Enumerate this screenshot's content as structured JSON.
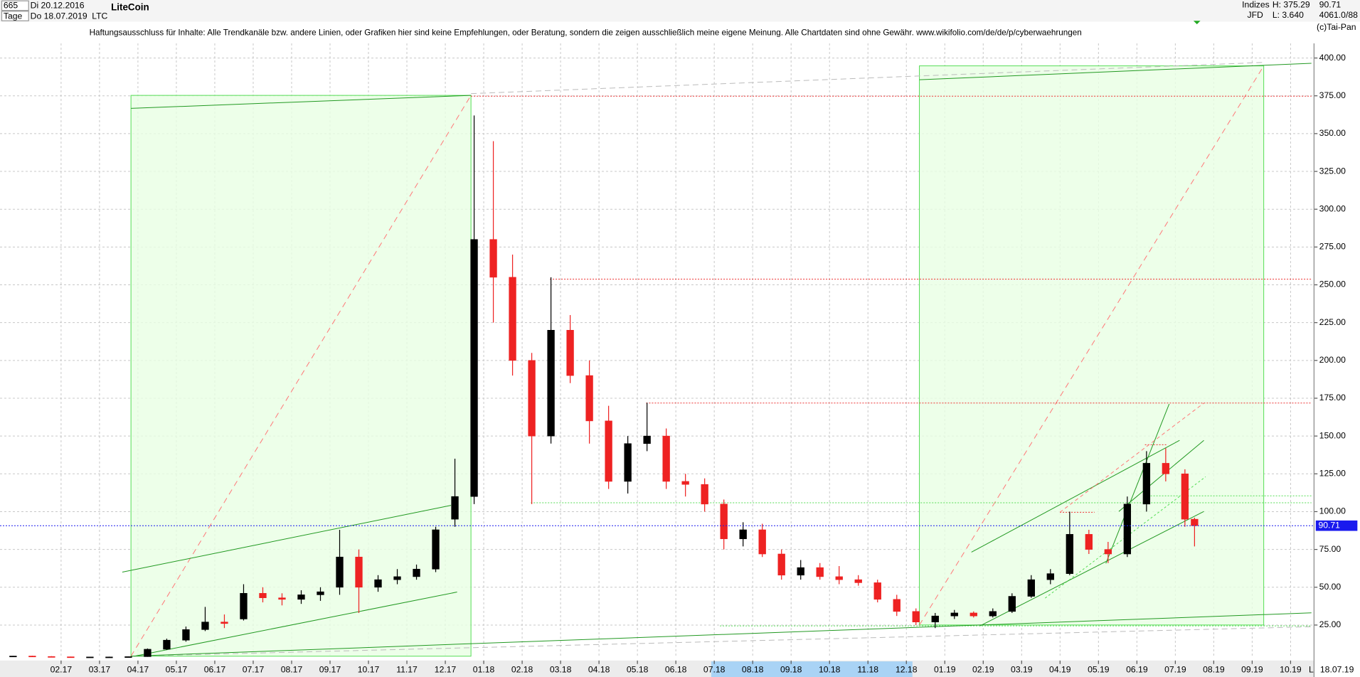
{
  "header": {
    "id": "665",
    "start": "Di 20.12.2016",
    "period": "Tage",
    "end": "Do 18.07.2019",
    "symbol": "LTC",
    "market": "Indizes",
    "source": "JFD",
    "high": "H: 375.29",
    "low": "L: 3.640",
    "last": "90.71",
    "count": "4061.0/88",
    "brand": "(c)Tai-Pan",
    "disclaimer": "Haftungsausschluss für Inhalte: Alle Trendkanäle bzw. andere Linien, oder Grafiken hier sind keine Empfehlungen, oder Beratung, sondern die zeigen ausschließlich meine eigene Meinung. Alle Chartdaten sind ohne Gewähr.  www.wikifolio.com/de/de/p/cyberwaehrungen",
    "axis_mode": "L",
    "last_date": "18.07.19"
  },
  "chart_data": {
    "type": "candlestick",
    "title": "LiteCoin",
    "x": [
      -0.25,
      0.25,
      0.75,
      1.25,
      1.75,
      2.25,
      2.75,
      3.25,
      3.75,
      4.25,
      4.75,
      5.25,
      5.75,
      6.25,
      6.75,
      7.25,
      7.75,
      8.25,
      8.75,
      9.25,
      9.75,
      10.25,
      10.75,
      11.25,
      11.75,
      12.25,
      12.75,
      13.25,
      13.75,
      14.25,
      14.75,
      15.25,
      15.75,
      16.25,
      16.75,
      17.25,
      17.75,
      18.25,
      18.75,
      19.25,
      19.75,
      20.25,
      20.75,
      21.25,
      21.75,
      22.25,
      22.75,
      23.25,
      23.75,
      24.25,
      24.75,
      25.25,
      25.75,
      26.25,
      26.75,
      27.25,
      27.75,
      28.25,
      28.75,
      29.25,
      29.75,
      30.25,
      30.5
    ],
    "open": [
      4.4,
      4.5,
      4.2,
      4.0,
      3.8,
      3.9,
      3.9,
      4.1,
      9.0,
      15,
      22,
      27,
      29,
      46,
      43,
      42,
      45,
      50,
      70,
      50,
      55,
      57,
      62,
      95,
      110,
      280,
      255,
      200,
      150,
      220,
      190,
      160,
      120,
      145,
      150,
      120,
      118,
      105,
      82,
      88,
      72,
      58,
      63,
      57,
      55,
      53,
      42,
      34,
      27,
      31,
      33,
      31,
      34,
      44,
      55,
      59,
      85,
      75,
      72,
      105,
      132,
      125,
      95
    ],
    "high": [
      4.6,
      4.7,
      4.4,
      4.1,
      4.0,
      4.1,
      4.2,
      9.5,
      16,
      24,
      37,
      32,
      52,
      50,
      46,
      48,
      50,
      88,
      75,
      58,
      62,
      65,
      90,
      135,
      362,
      345,
      270,
      205,
      255,
      230,
      200,
      170,
      150,
      172,
      155,
      125,
      122,
      108,
      93,
      92,
      75,
      68,
      66,
      64,
      58,
      55,
      45,
      36,
      33,
      35,
      34,
      36,
      46,
      58,
      62,
      100,
      88,
      80,
      110,
      140,
      142,
      128,
      96
    ],
    "low": [
      4.2,
      3.9,
      3.8,
      3.7,
      3.6,
      3.7,
      3.7,
      4.0,
      8.5,
      14,
      21,
      23,
      28,
      40,
      38,
      39,
      41,
      45,
      33,
      47,
      52,
      55,
      60,
      90,
      105,
      225,
      190,
      105,
      145,
      185,
      145,
      115,
      112,
      140,
      115,
      110,
      100,
      75,
      77,
      70,
      55,
      55,
      55,
      52,
      51,
      40,
      31,
      25,
      23,
      29,
      30,
      30,
      33,
      43,
      52,
      58,
      72,
      66,
      70,
      100,
      120,
      90,
      77
    ],
    "close": [
      4.5,
      4.2,
      4.0,
      3.8,
      3.9,
      3.9,
      4.1,
      9.0,
      15,
      22,
      27,
      26,
      46,
      43,
      42,
      45,
      47,
      70,
      50,
      55,
      57,
      62,
      88,
      110,
      280,
      255,
      200,
      150,
      220,
      190,
      160,
      120,
      145,
      150,
      120,
      118,
      105,
      82,
      88,
      72,
      58,
      63,
      57,
      55,
      53,
      42,
      34,
      27,
      31,
      33,
      31,
      34,
      44,
      55,
      59,
      85,
      75,
      72,
      105,
      132,
      125,
      95,
      90.71
    ],
    "up_color": "#000000",
    "down_color": "#ee2222",
    "last_color": "#1a1aee",
    "xlim": [
      -0.59,
      33.61
    ],
    "xticks": [
      {
        "value": 1,
        "label": "02.17"
      },
      {
        "value": 2,
        "label": "03.17"
      },
      {
        "value": 3,
        "label": "04.17"
      },
      {
        "value": 4,
        "label": "05.17"
      },
      {
        "value": 5,
        "label": "06.17"
      },
      {
        "value": 6,
        "label": "07.17"
      },
      {
        "value": 7,
        "label": "08.17"
      },
      {
        "value": 8,
        "label": "09.17"
      },
      {
        "value": 9,
        "label": "10.17"
      },
      {
        "value": 10,
        "label": "11.17"
      },
      {
        "value": 11,
        "label": "12.17"
      },
      {
        "value": 12,
        "label": "01.18"
      },
      {
        "value": 13,
        "label": "02.18"
      },
      {
        "value": 14,
        "label": "03.18"
      },
      {
        "value": 15,
        "label": "04.18"
      },
      {
        "value": 16,
        "label": "05.18"
      },
      {
        "value": 17,
        "label": "06.18"
      },
      {
        "value": 18,
        "label": "07.18"
      },
      {
        "value": 19,
        "label": "08.18"
      },
      {
        "value": 20,
        "label": "09.18"
      },
      {
        "value": 21,
        "label": "10.18"
      },
      {
        "value": 22,
        "label": "11.18"
      },
      {
        "value": 23,
        "label": "12.18"
      },
      {
        "value": 24,
        "label": "01.19"
      },
      {
        "value": 25,
        "label": "02.19"
      },
      {
        "value": 26,
        "label": "03.19"
      },
      {
        "value": 27,
        "label": "04.19"
      },
      {
        "value": 28,
        "label": "05.19"
      },
      {
        "value": 29,
        "label": "06.19"
      },
      {
        "value": 30,
        "label": "07.19"
      },
      {
        "value": 31,
        "label": "08.19"
      },
      {
        "value": 32,
        "label": "09.19"
      },
      {
        "value": 33,
        "label": "10.19"
      }
    ],
    "ylim": [
      4.4,
      409.7
    ],
    "yticks": [
      {
        "value": 25,
        "label": "25.00"
      },
      {
        "value": 50,
        "label": "50.00"
      },
      {
        "value": 75,
        "label": "75.00"
      },
      {
        "value": 100,
        "label": "100.00"
      },
      {
        "value": 125,
        "label": "125.00"
      },
      {
        "value": 150,
        "label": "150.00"
      },
      {
        "value": 175,
        "label": "175.00"
      },
      {
        "value": 200,
        "label": "200.00"
      },
      {
        "value": 225,
        "label": "225.00"
      },
      {
        "value": 250,
        "label": "250.00"
      },
      {
        "value": 275,
        "label": "275.00"
      },
      {
        "value": 300,
        "label": "300.00"
      },
      {
        "value": 325,
        "label": "325.00"
      },
      {
        "value": 350,
        "label": "350.00"
      },
      {
        "value": 375,
        "label": "375.00"
      },
      {
        "value": 400,
        "label": "400.00"
      }
    ],
    "grid": true
  }
}
